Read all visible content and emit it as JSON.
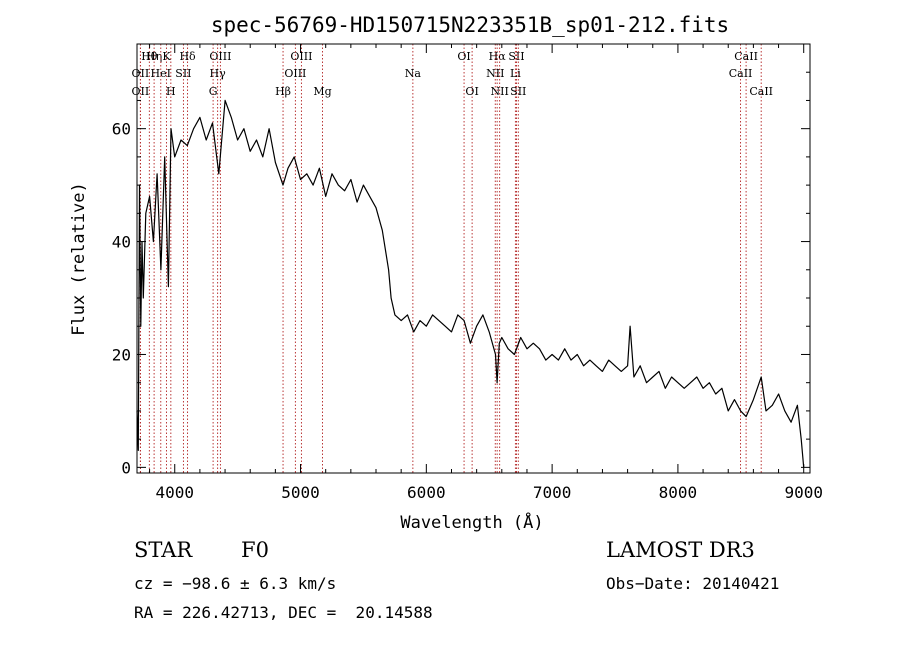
{
  "chart_data": {
    "type": "line",
    "title": "spec-56769-HD150715N223351B_sp01-212.fits",
    "xlabel": "Wavelength (Å)",
    "ylabel": "Flux (relative)",
    "xlim": [
      3700,
      9050
    ],
    "ylim": [
      -1,
      75
    ],
    "xticks": [
      4000,
      5000,
      6000,
      7000,
      8000,
      9000
    ],
    "yticks": [
      0,
      20,
      40,
      60
    ],
    "grid": false,
    "series": [
      {
        "name": "flux",
        "x": [
          3700,
          3710,
          3720,
          3730,
          3740,
          3750,
          3770,
          3800,
          3830,
          3860,
          3890,
          3920,
          3950,
          3970,
          4000,
          4050,
          4100,
          4150,
          4200,
          4250,
          4300,
          4350,
          4400,
          4450,
          4500,
          4550,
          4600,
          4650,
          4700,
          4750,
          4800,
          4861,
          4900,
          4950,
          5000,
          5050,
          5100,
          5150,
          5200,
          5250,
          5300,
          5350,
          5400,
          5450,
          5500,
          5550,
          5600,
          5650,
          5700,
          5720,
          5750,
          5800,
          5850,
          5900,
          5950,
          6000,
          6050,
          6100,
          6150,
          6200,
          6250,
          6300,
          6350,
          6400,
          6450,
          6500,
          6550,
          6563,
          6580,
          6600,
          6650,
          6700,
          6750,
          6800,
          6850,
          6900,
          6950,
          7000,
          7050,
          7100,
          7150,
          7200,
          7250,
          7300,
          7350,
          7400,
          7450,
          7500,
          7550,
          7600,
          7620,
          7650,
          7700,
          7750,
          7800,
          7850,
          7900,
          7950,
          8000,
          8050,
          8100,
          8150,
          8200,
          8250,
          8300,
          8350,
          8400,
          8450,
          8498,
          8542,
          8600,
          8662,
          8700,
          8750,
          8800,
          8850,
          8900,
          8950,
          8980,
          9000
        ],
        "values": [
          10,
          3,
          50,
          25,
          40,
          30,
          45,
          48,
          40,
          52,
          35,
          55,
          32,
          60,
          55,
          58,
          57,
          60,
          62,
          58,
          61,
          52,
          65,
          62,
          58,
          60,
          56,
          58,
          55,
          60,
          54,
          50,
          53,
          55,
          51,
          52,
          50,
          53,
          48,
          52,
          50,
          49,
          51,
          47,
          50,
          48,
          46,
          42,
          35,
          30,
          27,
          26,
          27,
          24,
          26,
          25,
          27,
          26,
          25,
          24,
          27,
          26,
          22,
          25,
          27,
          24,
          20,
          15,
          22,
          23,
          21,
          20,
          23,
          21,
          22,
          21,
          19,
          20,
          19,
          21,
          19,
          20,
          18,
          19,
          18,
          17,
          19,
          18,
          17,
          18,
          25,
          16,
          18,
          15,
          16,
          17,
          14,
          16,
          15,
          14,
          15,
          16,
          14,
          15,
          13,
          14,
          10,
          12,
          10,
          9,
          12,
          16,
          10,
          11,
          13,
          10,
          8,
          11,
          5,
          0
        ]
      }
    ],
    "lines": [
      {
        "label": "Hθ",
        "x": 3798,
        "row": 0
      },
      {
        "label": "OII",
        "x": 3727,
        "row": 1
      },
      {
        "label": "OII",
        "x": 3727,
        "row": 2
      },
      {
        "label": "Hη",
        "x": 3836,
        "row": 0
      },
      {
        "label": "HeI",
        "x": 3889,
        "row": 1
      },
      {
        "label": "H",
        "x": 3969,
        "row": 2
      },
      {
        "label": "K",
        "x": 3934,
        "row": 0
      },
      {
        "label": "SII",
        "x": 4069,
        "row": 1
      },
      {
        "label": "Hδ",
        "x": 4102,
        "row": 0
      },
      {
        "label": "OIII",
        "x": 4363,
        "row": 0
      },
      {
        "label": "Hγ",
        "x": 4341,
        "row": 1
      },
      {
        "label": "G",
        "x": 4305,
        "row": 2
      },
      {
        "label": "Hβ",
        "x": 4861,
        "row": 2
      },
      {
        "label": "OIII",
        "x": 5007,
        "row": 0
      },
      {
        "label": "OIII",
        "x": 4959,
        "row": 1
      },
      {
        "label": "Mg",
        "x": 5175,
        "row": 2
      },
      {
        "label": "Na",
        "x": 5893,
        "row": 1
      },
      {
        "label": "OI",
        "x": 6300,
        "row": 0
      },
      {
        "label": "OI",
        "x": 6364,
        "row": 2
      },
      {
        "label": "Hα",
        "x": 6563,
        "row": 0
      },
      {
        "label": "NII",
        "x": 6548,
        "row": 1
      },
      {
        "label": "NII",
        "x": 6583,
        "row": 2
      },
      {
        "label": "SII",
        "x": 6717,
        "row": 0
      },
      {
        "label": "Li",
        "x": 6708,
        "row": 1
      },
      {
        "label": "SII",
        "x": 6731,
        "row": 2
      },
      {
        "label": "CaII",
        "x": 8542,
        "row": 0
      },
      {
        "label": "CaII",
        "x": 8498,
        "row": 1
      },
      {
        "label": "CaII",
        "x": 8662,
        "row": 2
      }
    ]
  },
  "info": {
    "object_class": "STAR",
    "subclass": "F0",
    "survey": "LAMOST DR3",
    "cz": "cz = −98.6 ± 6.3 km/s",
    "obs_date": "Obs−Date: 20140421",
    "coords": "RA = 226.42713, DEC =  20.14588"
  }
}
